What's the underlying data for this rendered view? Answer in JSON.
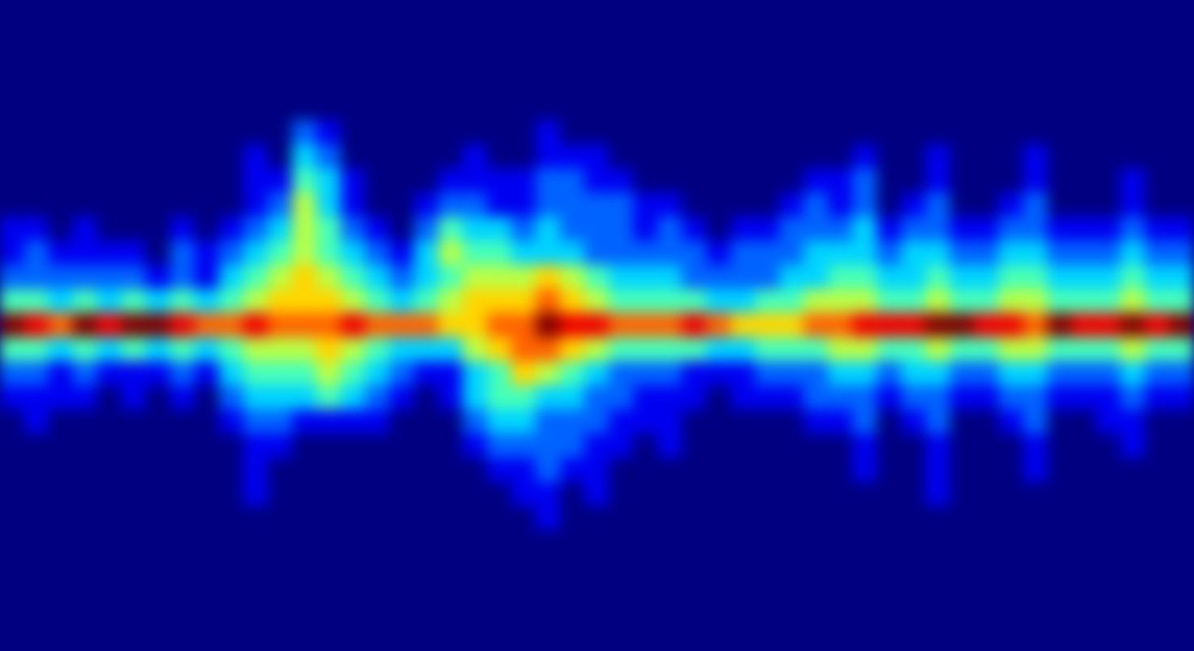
{
  "chart_data": {
    "type": "heatmap",
    "xlim": [
      0,
      49
    ],
    "ylim": [
      0,
      27
    ],
    "zlim": [
      0,
      9
    ],
    "tick_labels": false,
    "cells": [
      [
        0,
        0,
        0,
        0,
        0,
        0,
        0,
        0,
        0,
        0,
        0,
        0,
        0,
        0,
        0,
        0,
        0,
        0,
        0,
        0,
        0,
        0,
        0,
        0,
        0,
        0,
        0,
        0,
        0,
        0,
        0,
        0,
        0,
        0,
        0,
        0,
        0,
        0,
        0,
        0,
        0,
        0,
        0,
        0,
        0,
        0,
        0,
        0,
        0
      ],
      [
        0,
        0,
        0,
        0,
        0,
        0,
        0,
        0,
        0,
        0,
        0,
        0,
        0,
        0,
        0,
        0,
        0,
        0,
        0,
        0,
        0,
        0,
        0,
        0,
        0,
        0,
        0,
        0,
        0,
        0,
        0,
        0,
        0,
        0,
        0,
        0,
        0,
        0,
        0,
        0,
        0,
        0,
        0,
        0,
        0,
        0,
        0,
        0,
        0
      ],
      [
        0,
        0,
        0,
        0,
        0,
        0,
        0,
        0,
        0,
        0,
        0,
        0,
        0,
        0,
        0,
        0,
        0,
        0,
        0,
        0,
        0,
        0,
        0,
        0,
        0,
        0,
        0,
        0,
        0,
        0,
        0,
        0,
        0,
        0,
        0,
        0,
        0,
        0,
        0,
        0,
        0,
        0,
        0,
        0,
        0,
        0,
        0,
        0,
        0
      ],
      [
        0,
        0,
        0,
        0,
        0,
        0,
        0,
        0,
        0,
        0,
        0,
        0,
        0,
        0,
        0,
        0,
        0,
        0,
        0,
        0,
        0,
        0,
        0,
        0,
        0,
        0,
        0,
        0,
        0,
        0,
        0,
        0,
        0,
        0,
        0,
        0,
        0,
        0,
        0,
        0,
        0,
        0,
        0,
        0,
        0,
        0,
        0,
        0,
        0
      ],
      [
        0,
        0,
        0,
        0,
        0,
        0,
        0,
        0,
        0,
        0,
        0,
        0,
        0,
        0,
        0,
        0,
        0,
        0,
        0,
        0,
        0,
        0,
        0,
        0,
        0,
        0,
        0,
        0,
        0,
        0,
        0,
        0,
        0,
        0,
        0,
        0,
        0,
        0,
        0,
        0,
        0,
        0,
        0,
        0,
        0,
        0,
        0,
        0,
        0
      ],
      [
        0,
        0,
        0,
        0,
        0,
        0,
        0,
        0,
        0,
        0,
        0,
        0,
        2,
        1,
        0,
        0,
        0,
        0,
        0,
        0,
        0,
        0,
        1,
        0,
        0,
        0,
        0,
        0,
        0,
        0,
        0,
        0,
        0,
        0,
        0,
        0,
        0,
        0,
        0,
        0,
        0,
        0,
        0,
        0,
        0,
        0,
        0,
        0,
        0
      ],
      [
        0,
        0,
        0,
        0,
        0,
        0,
        0,
        0,
        0,
        0,
        1,
        0,
        3,
        2,
        0,
        0,
        0,
        0,
        0,
        1,
        0,
        0,
        1,
        1,
        1,
        0,
        0,
        0,
        0,
        0,
        0,
        0,
        0,
        0,
        0,
        1,
        0,
        0,
        1,
        0,
        0,
        0,
        1,
        0,
        0,
        0,
        0,
        0,
        0
      ],
      [
        0,
        0,
        0,
        0,
        0,
        0,
        0,
        0,
        0,
        0,
        1,
        1,
        4,
        3,
        1,
        0,
        0,
        0,
        1,
        1,
        1,
        1,
        2,
        2,
        1,
        1,
        0,
        0,
        0,
        0,
        0,
        0,
        0,
        1,
        1,
        2,
        0,
        0,
        1,
        0,
        0,
        0,
        1,
        0,
        0,
        0,
        1,
        0,
        0
      ],
      [
        0,
        0,
        0,
        0,
        0,
        0,
        0,
        0,
        0,
        0,
        1,
        2,
        5,
        3,
        1,
        0,
        0,
        1,
        2,
        2,
        1,
        1,
        2,
        2,
        2,
        2,
        1,
        1,
        0,
        0,
        0,
        0,
        1,
        2,
        1,
        2,
        0,
        1,
        2,
        0,
        0,
        1,
        2,
        0,
        0,
        0,
        1,
        0,
        0
      ],
      [
        1,
        1,
        0,
        1,
        0,
        0,
        0,
        1,
        0,
        1,
        2,
        3,
        5,
        4,
        2,
        1,
        0,
        2,
        4,
        3,
        3,
        2,
        3,
        2,
        2,
        2,
        1,
        2,
        1,
        0,
        1,
        1,
        2,
        2,
        2,
        3,
        1,
        2,
        2,
        1,
        1,
        2,
        2,
        1,
        1,
        1,
        2,
        1,
        1
      ],
      [
        1,
        2,
        1,
        1,
        1,
        1,
        0,
        2,
        1,
        2,
        3,
        4,
        5,
        4,
        3,
        2,
        1,
        3,
        5,
        4,
        4,
        3,
        3,
        3,
        2,
        2,
        2,
        2,
        2,
        1,
        2,
        2,
        2,
        3,
        3,
        3,
        2,
        3,
        3,
        2,
        2,
        3,
        3,
        2,
        2,
        2,
        3,
        2,
        2
      ],
      [
        2,
        2,
        2,
        2,
        2,
        2,
        1,
        2,
        1,
        3,
        4,
        5,
        6,
        5,
        4,
        3,
        2,
        3,
        4,
        5,
        5,
        5,
        6,
        5,
        4,
        3,
        3,
        3,
        2,
        2,
        2,
        2,
        3,
        3,
        4,
        4,
        3,
        3,
        4,
        3,
        3,
        4,
        4,
        3,
        3,
        3,
        4,
        3,
        3
      ],
      [
        4,
        4,
        3,
        4,
        3,
        4,
        3,
        4,
        3,
        4,
        5,
        6,
        6,
        6,
        5,
        4,
        3,
        4,
        5,
        6,
        6,
        6,
        7,
        6,
        5,
        4,
        4,
        4,
        4,
        3,
        3,
        4,
        4,
        5,
        5,
        5,
        4,
        4,
        5,
        4,
        4,
        5,
        5,
        4,
        4,
        4,
        5,
        4,
        4
      ],
      [
        9,
        8,
        7,
        9,
        8,
        9,
        9,
        8,
        7,
        7,
        8,
        7,
        7,
        7,
        8,
        7,
        7,
        7,
        6,
        6,
        7,
        7,
        9,
        8,
        8,
        7,
        7,
        7,
        8,
        7,
        6,
        6,
        6,
        7,
        7,
        8,
        8,
        8,
        9,
        9,
        8,
        8,
        7,
        9,
        8,
        8,
        9,
        8,
        9
      ],
      [
        4,
        4,
        3,
        4,
        3,
        4,
        3,
        4,
        3,
        4,
        5,
        5,
        5,
        6,
        5,
        4,
        3,
        3,
        3,
        5,
        6,
        7,
        7,
        6,
        5,
        4,
        4,
        4,
        4,
        3,
        3,
        4,
        4,
        4,
        5,
        5,
        4,
        4,
        5,
        4,
        4,
        5,
        5,
        4,
        4,
        4,
        5,
        4,
        4
      ],
      [
        2,
        2,
        1,
        2,
        1,
        1,
        1,
        2,
        1,
        3,
        4,
        4,
        4,
        5,
        4,
        3,
        2,
        1,
        1,
        3,
        4,
        6,
        5,
        4,
        3,
        2,
        2,
        2,
        1,
        1,
        1,
        2,
        2,
        2,
        3,
        3,
        2,
        3,
        3,
        2,
        2,
        3,
        3,
        2,
        2,
        2,
        3,
        2,
        2
      ],
      [
        1,
        1,
        1,
        1,
        0,
        1,
        0,
        1,
        0,
        2,
        3,
        3,
        3,
        4,
        3,
        2,
        1,
        0,
        1,
        3,
        4,
        4,
        3,
        3,
        2,
        2,
        1,
        1,
        1,
        0,
        1,
        1,
        1,
        2,
        2,
        2,
        1,
        2,
        2,
        1,
        1,
        2,
        2,
        1,
        1,
        1,
        2,
        1,
        1
      ],
      [
        0,
        1,
        0,
        0,
        0,
        0,
        0,
        0,
        0,
        1,
        2,
        2,
        1,
        1,
        1,
        1,
        0,
        0,
        0,
        2,
        3,
        3,
        2,
        2,
        2,
        1,
        1,
        1,
        0,
        0,
        0,
        0,
        0,
        1,
        1,
        2,
        0,
        1,
        2,
        0,
        0,
        1,
        2,
        0,
        0,
        1,
        1,
        0,
        0
      ],
      [
        0,
        0,
        0,
        0,
        0,
        0,
        0,
        0,
        0,
        0,
        1,
        1,
        0,
        0,
        0,
        0,
        0,
        0,
        0,
        1,
        2,
        2,
        2,
        2,
        1,
        1,
        0,
        1,
        0,
        0,
        0,
        0,
        0,
        0,
        0,
        1,
        0,
        0,
        1,
        0,
        0,
        0,
        1,
        0,
        0,
        0,
        1,
        0,
        0
      ],
      [
        0,
        0,
        0,
        0,
        0,
        0,
        0,
        0,
        0,
        0,
        1,
        0,
        0,
        0,
        0,
        0,
        0,
        0,
        0,
        0,
        1,
        1,
        2,
        1,
        1,
        0,
        0,
        0,
        0,
        0,
        0,
        0,
        0,
        0,
        0,
        1,
        0,
        0,
        1,
        0,
        0,
        0,
        1,
        0,
        0,
        0,
        0,
        0,
        0
      ],
      [
        0,
        0,
        0,
        0,
        0,
        0,
        0,
        0,
        0,
        0,
        1,
        0,
        0,
        0,
        0,
        0,
        0,
        0,
        0,
        0,
        0,
        1,
        1,
        0,
        1,
        0,
        0,
        0,
        0,
        0,
        0,
        0,
        0,
        0,
        0,
        0,
        0,
        0,
        1,
        0,
        0,
        0,
        0,
        0,
        0,
        0,
        0,
        0,
        0
      ],
      [
        0,
        0,
        0,
        0,
        0,
        0,
        0,
        0,
        0,
        0,
        0,
        0,
        0,
        0,
        0,
        0,
        0,
        0,
        0,
        0,
        0,
        0,
        1,
        0,
        0,
        0,
        0,
        0,
        0,
        0,
        0,
        0,
        0,
        0,
        0,
        0,
        0,
        0,
        0,
        0,
        0,
        0,
        0,
        0,
        0,
        0,
        0,
        0,
        0
      ],
      [
        0,
        0,
        0,
        0,
        0,
        0,
        0,
        0,
        0,
        0,
        0,
        0,
        0,
        0,
        0,
        0,
        0,
        0,
        0,
        0,
        0,
        0,
        0,
        0,
        0,
        0,
        0,
        0,
        0,
        0,
        0,
        0,
        0,
        0,
        0,
        0,
        0,
        0,
        0,
        0,
        0,
        0,
        0,
        0,
        0,
        0,
        0,
        0,
        0
      ],
      [
        0,
        0,
        0,
        0,
        0,
        0,
        0,
        0,
        0,
        0,
        0,
        0,
        0,
        0,
        0,
        0,
        0,
        0,
        0,
        0,
        0,
        0,
        0,
        0,
        0,
        0,
        0,
        0,
        0,
        0,
        0,
        0,
        0,
        0,
        0,
        0,
        0,
        0,
        0,
        0,
        0,
        0,
        0,
        0,
        0,
        0,
        0,
        0,
        0
      ],
      [
        0,
        0,
        0,
        0,
        0,
        0,
        0,
        0,
        0,
        0,
        0,
        0,
        0,
        0,
        0,
        0,
        0,
        0,
        0,
        0,
        0,
        0,
        0,
        0,
        0,
        0,
        0,
        0,
        0,
        0,
        0,
        0,
        0,
        0,
        0,
        0,
        0,
        0,
        0,
        0,
        0,
        0,
        0,
        0,
        0,
        0,
        0,
        0,
        0
      ],
      [
        0,
        0,
        0,
        0,
        0,
        0,
        0,
        0,
        0,
        0,
        0,
        0,
        0,
        0,
        0,
        0,
        0,
        0,
        0,
        0,
        0,
        0,
        0,
        0,
        0,
        0,
        0,
        0,
        0,
        0,
        0,
        0,
        0,
        0,
        0,
        0,
        0,
        0,
        0,
        0,
        0,
        0,
        0,
        0,
        0,
        0,
        0,
        0,
        0
      ],
      [
        0,
        0,
        0,
        0,
        0,
        0,
        0,
        0,
        0,
        0,
        0,
        0,
        0,
        0,
        0,
        0,
        0,
        0,
        0,
        0,
        0,
        0,
        0,
        0,
        0,
        0,
        0,
        0,
        0,
        0,
        0,
        0,
        0,
        0,
        0,
        0,
        0,
        0,
        0,
        0,
        0,
        0,
        0,
        0,
        0,
        0,
        0,
        0,
        0
      ]
    ]
  }
}
